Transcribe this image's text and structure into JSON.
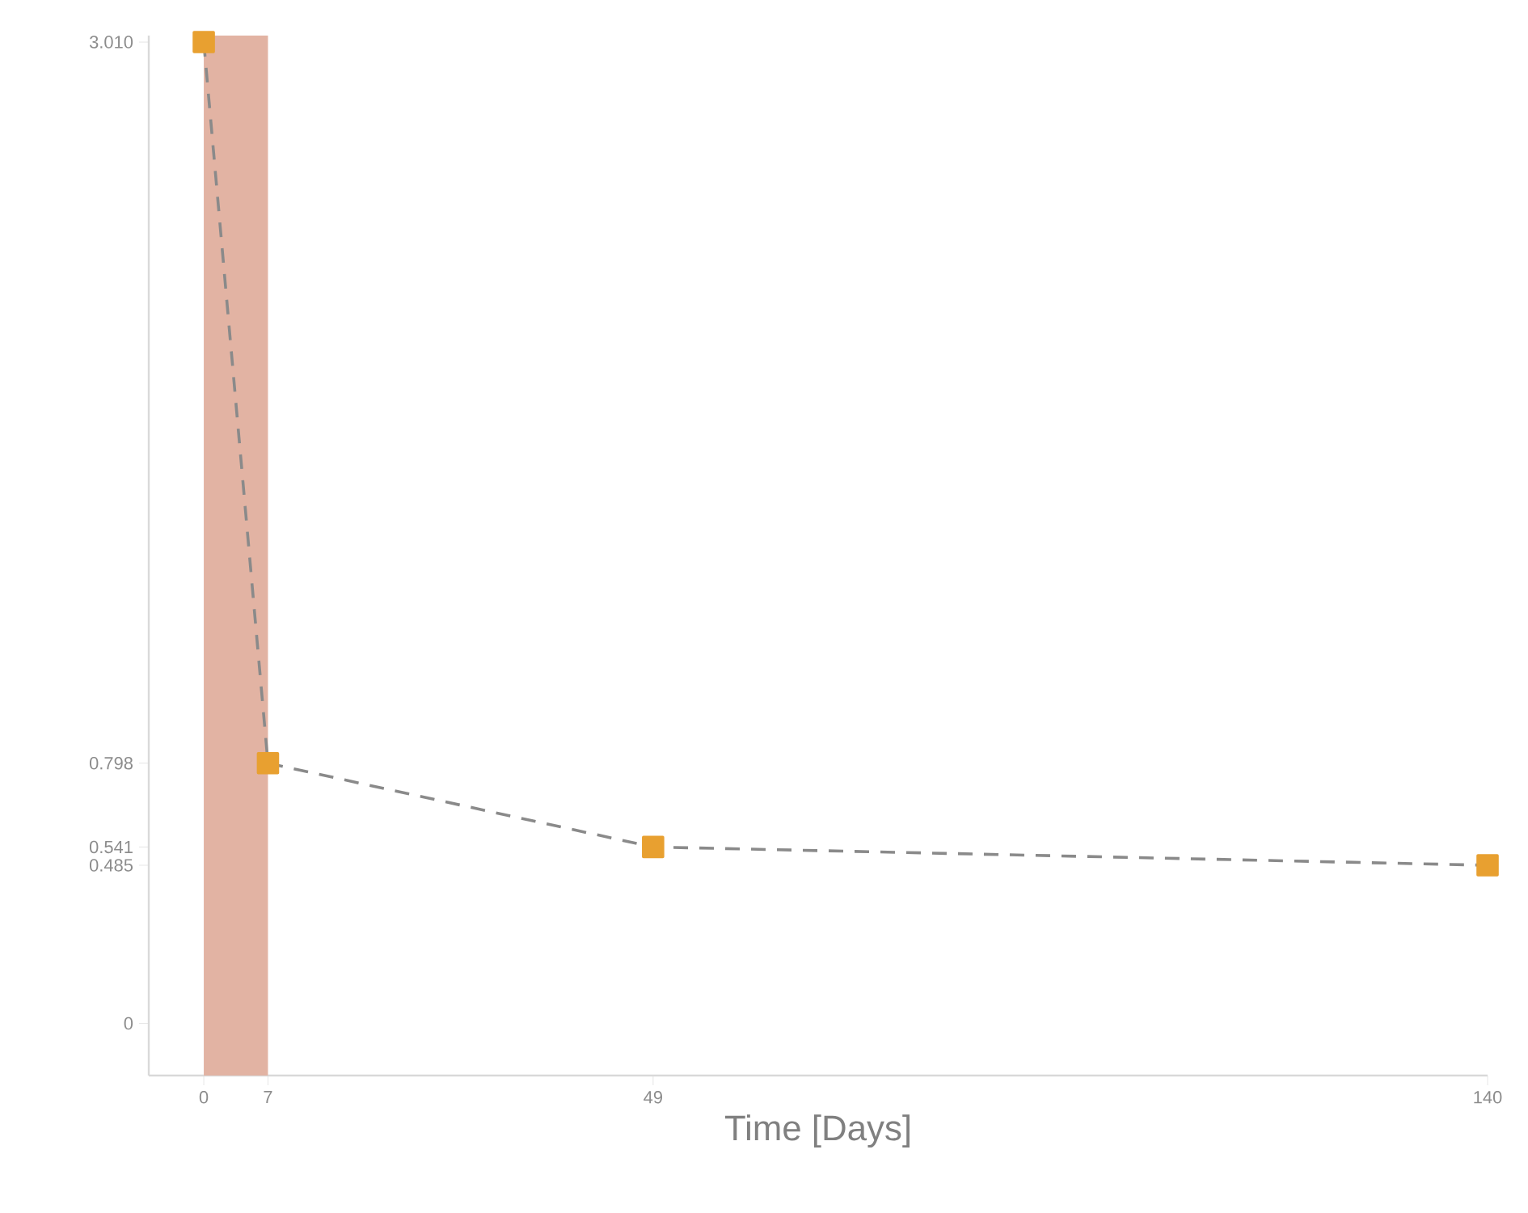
{
  "chart_data": {
    "type": "line",
    "xlabel": "Time [Days]",
    "x": [
      0,
      7,
      49,
      140
    ],
    "series": [
      {
        "color": "#e8a030",
        "values": [
          3.01,
          0.798,
          0.541,
          0.485
        ]
      }
    ],
    "marker": "square",
    "line_style": "dashed",
    "grid": false,
    "xlim": [
      -6,
      140
    ],
    "xticks": [
      0,
      7,
      49,
      140
    ],
    "ylim": [
      -0.16,
      3.03
    ],
    "yticks": [
      0,
      0.485,
      0.541,
      0.798,
      {
        "value": 3.01,
        "label": "3.010"
      }
    ],
    "bands": [
      {
        "axis": "x",
        "from": 0,
        "to": 7,
        "color": "#e2b3a3"
      }
    ]
  }
}
